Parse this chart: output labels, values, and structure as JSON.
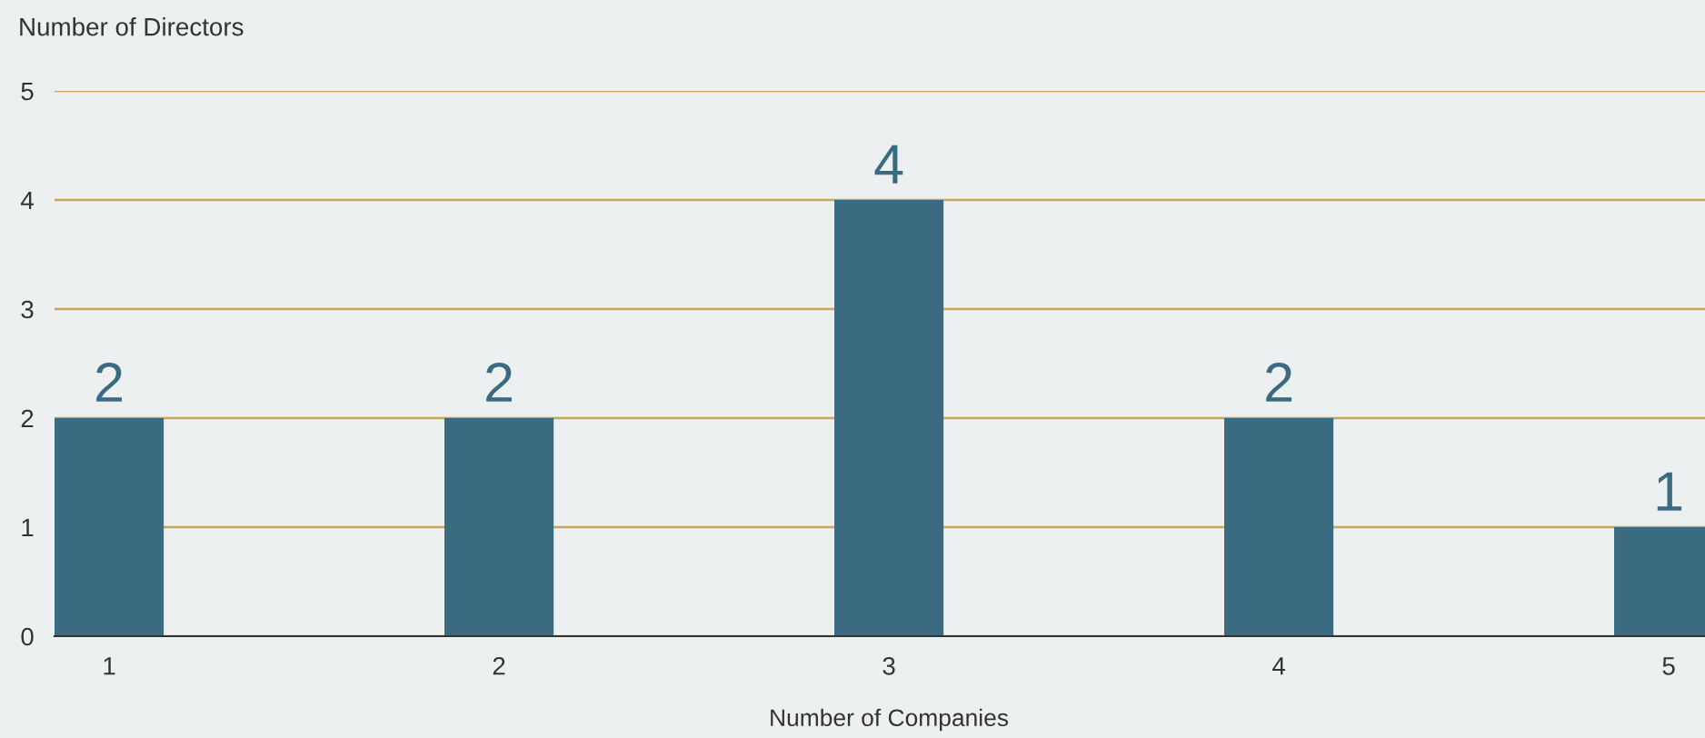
{
  "chart_data": {
    "type": "bar",
    "ylabel": "Number of Directors",
    "xlabel": "Number of Companies",
    "categories": [
      "1",
      "2",
      "3",
      "4",
      "5"
    ],
    "values": [
      2,
      2,
      4,
      2,
      1
    ],
    "color": "#3a6b80",
    "ylim": [
      0,
      5
    ],
    "yticks": [
      0,
      1,
      2,
      3,
      4,
      5
    ],
    "grid": "y",
    "data_labels": true
  }
}
